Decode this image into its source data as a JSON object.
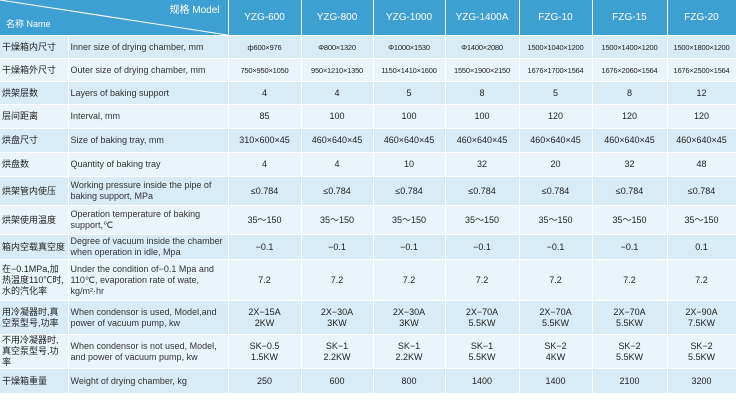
{
  "header": {
    "corner_top": "规格 Model",
    "corner_bottom": "名称 Name",
    "models": [
      "YZG-600",
      "YZG-800",
      "YZG-1000",
      "YZG-1400A",
      "FZG-10",
      "FZG-15",
      "FZG-20"
    ]
  },
  "rows": [
    {
      "cn": "干燥箱内尺寸",
      "en": "Inner size of drying chamber, mm",
      "small": true,
      "values": [
        "ф600×976",
        "Φ800×1320",
        "Φ1000×1530",
        "Φ1400×2080",
        "1500×1040×1200",
        "1500×1400×1200",
        "1500×1800×1200"
      ]
    },
    {
      "cn": "干燥箱外尺寸",
      "en": "Outer size of drying chamber, mm",
      "small": true,
      "values": [
        "750×950×1050",
        "950×1210×1350",
        "1150×1410×1600",
        "1550×1900×2150",
        "1676×1700×1564",
        "1676×2060×1564",
        "1676×2500×1564"
      ]
    },
    {
      "cn": "烘架层数",
      "en": "Layers of baking support",
      "values": [
        "4",
        "4",
        "5",
        "8",
        "5",
        "8",
        "12"
      ]
    },
    {
      "cn": "层间距离",
      "en": "Interval, mm",
      "values": [
        "85",
        "100",
        "100",
        "100",
        "120",
        "120",
        "120"
      ]
    },
    {
      "cn": "烘盘尺寸",
      "en": "Size of baking tray, mm",
      "values": [
        "310×600×45",
        "460×640×45",
        "460×640×45",
        "460×640×45",
        "460×640×45",
        "460×640×45",
        "460×640×45"
      ]
    },
    {
      "cn": "烘盘数",
      "en": "Quantity of baking tray",
      "values": [
        "4",
        "4",
        "10",
        "32",
        "20",
        "32",
        "48"
      ]
    },
    {
      "cn": "烘架管内使压",
      "en": "Working pressure inside the pipe of baking support, MPa",
      "values": [
        "≤0.784",
        "≤0.784",
        "≤0.784",
        "≤0.784",
        "≤0.784",
        "≤0.784",
        "≤0.784"
      ]
    },
    {
      "cn": "烘架使用温度",
      "en": "Operation temperature of baking support,℃",
      "values": [
        "35～150",
        "35～150",
        "35～150",
        "35～150",
        "35～150",
        "35～150",
        "35～150"
      ]
    },
    {
      "cn": "箱内空载真空度",
      "en": "Degree of vacuum inside the chamber when operation in idle, Mpa",
      "values": [
        "−0.1",
        "−0.1",
        "−0.1",
        "−0.1",
        "−0.1",
        "−0.1",
        "0.1"
      ]
    },
    {
      "cn": "在−0.1MPa,加热温度110℃时,水的汽化率",
      "en": "Under the condition of−0.1 Mpa and 110℃, evaporation rate of wate, kg/m²·hr",
      "values": [
        "7.2",
        "7.2",
        "7.2",
        "7.2",
        "7.2",
        "7.2",
        "7.2"
      ]
    },
    {
      "cn": "用冷凝器时,真空泵型号,功率",
      "en": "When condensor is used, Model,and power of vacuum pump, kw",
      "values": [
        [
          "2X−15A",
          "2KW"
        ],
        [
          "2X−30A",
          "3KW"
        ],
        [
          "2X−30A",
          "3KW"
        ],
        [
          "2X−70A",
          "5.5KW"
        ],
        [
          "2X−70A",
          "5.5KW"
        ],
        [
          "2X−70A",
          "5.5KW"
        ],
        [
          "2X−90A",
          "7.5KW"
        ]
      ]
    },
    {
      "cn": "不用冷凝器时,真空泵型号,功率",
      "en": "When condensor is not used, Model, and power of vacuum pump, kw",
      "values": [
        [
          "SK−0.5",
          "1.5KW"
        ],
        [
          "SK−1",
          "2.2KW"
        ],
        [
          "SK−1",
          "2.2KW"
        ],
        [
          "SK−1",
          "5.5KW"
        ],
        [
          "SK−2",
          "4KW"
        ],
        [
          "SK−2",
          "5.5KW"
        ],
        [
          "SK−2",
          "5.5KW"
        ]
      ]
    },
    {
      "cn": "干燥箱重量",
      "en": "Weight of drying chamber, kg",
      "values": [
        "250",
        "600",
        "800",
        "1400",
        "1400",
        "2100",
        "3200"
      ]
    }
  ]
}
